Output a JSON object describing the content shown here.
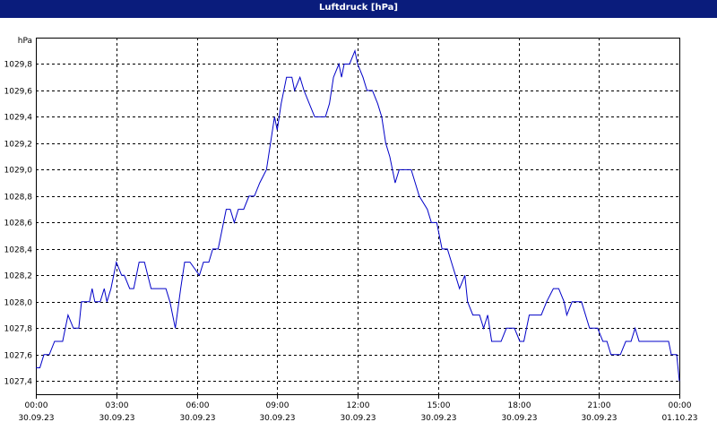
{
  "window": {
    "title": "Luftdruck [hPa]"
  },
  "colors": {
    "titlebar": "#0a1c7c",
    "series": "#0000c8",
    "grid": "#000000",
    "background": "#ffffff"
  },
  "chart_data": {
    "type": "line",
    "title": "Luftdruck [hPa]",
    "ylabel": "hPa",
    "xlabel": "",
    "ylim": [
      1027.3,
      1030.0
    ],
    "yticks": [
      1027.4,
      1027.6,
      1027.8,
      1028.0,
      1028.2,
      1028.4,
      1028.6,
      1028.8,
      1029.0,
      1029.2,
      1029.4,
      1029.6,
      1029.8
    ],
    "ytick_labels": [
      "1027,4",
      "1027,6",
      "1027,8",
      "1028,0",
      "1028,2",
      "1028,4",
      "1028,6",
      "1028,8",
      "1029,0",
      "1029,2",
      "1029,4",
      "1029,6",
      "1029,8"
    ],
    "xlim_hours": [
      0,
      24
    ],
    "xticks": [
      {
        "hour": 0,
        "time": "00:00",
        "date": "30.09.23"
      },
      {
        "hour": 3,
        "time": "03:00",
        "date": "30.09.23"
      },
      {
        "hour": 6,
        "time": "06:00",
        "date": "30.09.23"
      },
      {
        "hour": 9,
        "time": "09:00",
        "date": "30.09.23"
      },
      {
        "hour": 12,
        "time": "12:00",
        "date": "30.09.23"
      },
      {
        "hour": 15,
        "time": "15:00",
        "date": "30.09.23"
      },
      {
        "hour": 18,
        "time": "18:00",
        "date": "30.09.23"
      },
      {
        "hour": 21,
        "time": "21:00",
        "date": "30.09.23"
      },
      {
        "hour": 24,
        "time": "00:00",
        "date": "01.10.23"
      }
    ],
    "grid": true,
    "series": [
      {
        "values": [
          [
            0.0,
            1027.5
          ],
          [
            0.15,
            1027.5
          ],
          [
            0.3,
            1027.6
          ],
          [
            0.5,
            1027.6
          ],
          [
            0.7,
            1027.7
          ],
          [
            1.0,
            1027.7
          ],
          [
            1.2,
            1027.9
          ],
          [
            1.4,
            1027.8
          ],
          [
            1.6,
            1027.8
          ],
          [
            1.7,
            1028.0
          ],
          [
            2.0,
            1028.0
          ],
          [
            2.1,
            1028.1
          ],
          [
            2.2,
            1028.0
          ],
          [
            2.4,
            1028.0
          ],
          [
            2.55,
            1028.1
          ],
          [
            2.65,
            1028.0
          ],
          [
            2.8,
            1028.1
          ],
          [
            3.0,
            1028.3
          ],
          [
            3.2,
            1028.2
          ],
          [
            3.3,
            1028.2
          ],
          [
            3.5,
            1028.1
          ],
          [
            3.65,
            1028.1
          ],
          [
            3.85,
            1028.3
          ],
          [
            4.05,
            1028.3
          ],
          [
            4.3,
            1028.1
          ],
          [
            4.5,
            1028.1
          ],
          [
            4.85,
            1028.1
          ],
          [
            5.0,
            1028.0
          ],
          [
            5.2,
            1027.8
          ],
          [
            5.4,
            1028.1
          ],
          [
            5.55,
            1028.3
          ],
          [
            5.75,
            1028.3
          ],
          [
            6.1,
            1028.2
          ],
          [
            6.25,
            1028.3
          ],
          [
            6.45,
            1028.3
          ],
          [
            6.6,
            1028.4
          ],
          [
            6.8,
            1028.4
          ],
          [
            6.9,
            1028.5
          ],
          [
            7.1,
            1028.7
          ],
          [
            7.25,
            1028.7
          ],
          [
            7.4,
            1028.6
          ],
          [
            7.55,
            1028.7
          ],
          [
            7.75,
            1028.7
          ],
          [
            7.95,
            1028.8
          ],
          [
            8.15,
            1028.8
          ],
          [
            8.35,
            1028.9
          ],
          [
            8.6,
            1029.0
          ],
          [
            8.75,
            1029.2
          ],
          [
            8.9,
            1029.4
          ],
          [
            9.0,
            1029.3
          ],
          [
            9.15,
            1029.5
          ],
          [
            9.35,
            1029.7
          ],
          [
            9.55,
            1029.7
          ],
          [
            9.65,
            1029.6
          ],
          [
            9.85,
            1029.7
          ],
          [
            10.0,
            1029.6
          ],
          [
            10.2,
            1029.5
          ],
          [
            10.4,
            1029.4
          ],
          [
            10.8,
            1029.4
          ],
          [
            10.95,
            1029.5
          ],
          [
            11.1,
            1029.7
          ],
          [
            11.3,
            1029.8
          ],
          [
            11.4,
            1029.7
          ],
          [
            11.5,
            1029.8
          ],
          [
            11.7,
            1029.8
          ],
          [
            11.9,
            1029.9
          ],
          [
            12.0,
            1029.8
          ],
          [
            12.2,
            1029.7
          ],
          [
            12.35,
            1029.6
          ],
          [
            12.55,
            1029.6
          ],
          [
            12.75,
            1029.5
          ],
          [
            12.9,
            1029.4
          ],
          [
            13.05,
            1029.2
          ],
          [
            13.2,
            1029.1
          ],
          [
            13.4,
            1028.9
          ],
          [
            13.55,
            1029.0
          ],
          [
            13.75,
            1029.0
          ],
          [
            14.0,
            1029.0
          ],
          [
            14.15,
            1028.9
          ],
          [
            14.3,
            1028.8
          ],
          [
            14.6,
            1028.7
          ],
          [
            14.75,
            1028.6
          ],
          [
            14.95,
            1028.6
          ],
          [
            15.15,
            1028.4
          ],
          [
            15.35,
            1028.4
          ],
          [
            15.5,
            1028.3
          ],
          [
            15.65,
            1028.2
          ],
          [
            15.8,
            1028.1
          ],
          [
            16.0,
            1028.2
          ],
          [
            16.1,
            1028.0
          ],
          [
            16.3,
            1027.9
          ],
          [
            16.55,
            1027.9
          ],
          [
            16.7,
            1027.8
          ],
          [
            16.85,
            1027.9
          ],
          [
            17.0,
            1027.7
          ],
          [
            17.35,
            1027.7
          ],
          [
            17.55,
            1027.8
          ],
          [
            17.85,
            1027.8
          ],
          [
            18.05,
            1027.7
          ],
          [
            18.2,
            1027.7
          ],
          [
            18.4,
            1027.9
          ],
          [
            18.65,
            1027.9
          ],
          [
            18.85,
            1027.9
          ],
          [
            19.05,
            1028.0
          ],
          [
            19.3,
            1028.1
          ],
          [
            19.5,
            1028.1
          ],
          [
            19.7,
            1028.0
          ],
          [
            19.8,
            1027.9
          ],
          [
            20.0,
            1028.0
          ],
          [
            20.35,
            1028.0
          ],
          [
            20.65,
            1027.8
          ],
          [
            20.95,
            1027.8
          ],
          [
            21.15,
            1027.7
          ],
          [
            21.3,
            1027.7
          ],
          [
            21.45,
            1027.6
          ],
          [
            21.6,
            1027.6
          ],
          [
            21.8,
            1027.6
          ],
          [
            22.0,
            1027.7
          ],
          [
            22.2,
            1027.7
          ],
          [
            22.35,
            1027.8
          ],
          [
            22.5,
            1027.7
          ],
          [
            22.7,
            1027.7
          ],
          [
            23.25,
            1027.7
          ],
          [
            23.6,
            1027.7
          ],
          [
            23.7,
            1027.6
          ],
          [
            23.9,
            1027.6
          ],
          [
            24.0,
            1027.4
          ]
        ]
      }
    ]
  }
}
